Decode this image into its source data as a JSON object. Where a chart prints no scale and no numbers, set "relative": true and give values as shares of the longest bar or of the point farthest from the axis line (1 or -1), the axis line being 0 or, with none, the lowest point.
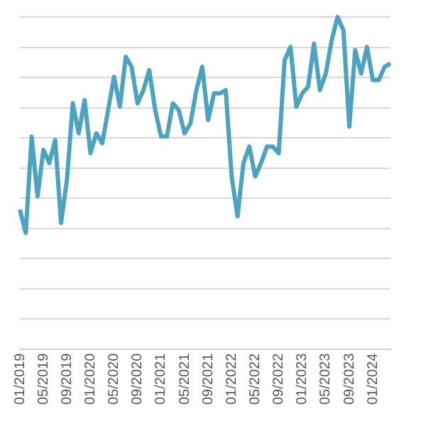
{
  "chart_data": {
    "type": "line",
    "relative": true,
    "grid": "y",
    "legend": false,
    "marker": "none",
    "categories": [
      "01/2019",
      null,
      null,
      null,
      "05/2019",
      null,
      null,
      null,
      "09/2019",
      null,
      null,
      null,
      "01/2020",
      null,
      null,
      null,
      "05/2020",
      null,
      null,
      null,
      "09/2020",
      null,
      null,
      null,
      "01/2021",
      null,
      null,
      null,
      "05/2021",
      null,
      null,
      null,
      "09/2021",
      null,
      null,
      null,
      "01/2022",
      null,
      null,
      null,
      "05/2022",
      null,
      null,
      null,
      "09/2022",
      null,
      null,
      null,
      "01/2023",
      null,
      null,
      null,
      "05/2023",
      null,
      null,
      null,
      "09/2023",
      null,
      null,
      null,
      "01/2024",
      null,
      null,
      null
    ],
    "series": [
      {
        "color": "#4aa3c0",
        "values": [
          0.42,
          0.35,
          0.64,
          0.46,
          0.6,
          0.56,
          0.63,
          0.38,
          0.51,
          0.74,
          0.65,
          0.75,
          0.59,
          0.65,
          0.62,
          0.72,
          0.82,
          0.73,
          0.88,
          0.85,
          0.74,
          0.78,
          0.84,
          0.72,
          0.64,
          0.64,
          0.74,
          0.72,
          0.65,
          0.68,
          0.78,
          0.85,
          0.69,
          0.77,
          0.77,
          0.78,
          0.52,
          0.4,
          0.56,
          0.61,
          0.52,
          0.56,
          0.61,
          0.61,
          0.59,
          0.87,
          0.91,
          0.73,
          0.77,
          0.79,
          0.92,
          0.78,
          0.83,
          0.93,
          1,
          0.96,
          0.67,
          0.9,
          0.83,
          0.91,
          0.81,
          0.81,
          0.85,
          0.86
        ]
      }
    ]
  }
}
